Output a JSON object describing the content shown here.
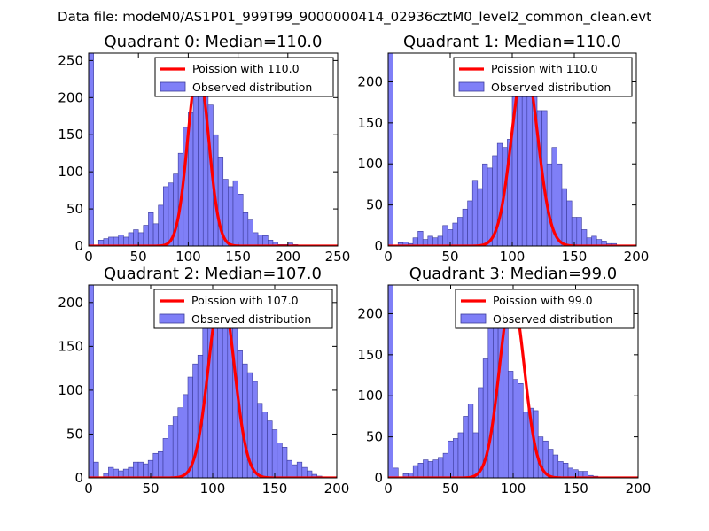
{
  "figure_title": "Data file: modeM0/AS1P01_999T99_9000000414_02936cztM0_level2_common_clean.evt",
  "colors": {
    "bar_fill": "#7f7ff7",
    "bar_edge": "#3b3b9a",
    "poisson": "#ff0000",
    "axes": "#000000"
  },
  "chart_data": [
    {
      "type": "bar",
      "title": "Quadrant 0: Median=110.0",
      "xlim": [
        0,
        250
      ],
      "ylim": [
        0,
        260
      ],
      "xticks": [
        "0",
        "50",
        "100",
        "150",
        "200",
        "250"
      ],
      "yticks": [
        "0",
        "50",
        "100",
        "150",
        "200",
        "250"
      ],
      "bin_width": 5,
      "bin_starts": [
        0,
        10,
        15,
        20,
        25,
        30,
        35,
        40,
        45,
        50,
        55,
        60,
        65,
        70,
        75,
        80,
        85,
        90,
        95,
        100,
        105,
        110,
        115,
        120,
        125,
        130,
        135,
        140,
        145,
        150,
        155,
        160,
        165,
        170,
        175,
        180,
        185,
        190,
        195,
        200,
        205,
        210,
        215,
        220,
        225
      ],
      "counts": [
        260,
        8,
        10,
        12,
        12,
        15,
        12,
        18,
        22,
        18,
        28,
        45,
        30,
        55,
        80,
        85,
        97,
        125,
        160,
        180,
        230,
        248,
        230,
        190,
        150,
        120,
        90,
        80,
        88,
        70,
        45,
        35,
        18,
        15,
        14,
        8,
        5,
        2,
        2,
        4,
        2,
        1,
        0,
        0,
        1
      ],
      "legend": [
        "Poission with 110.0",
        "Observed distribution"
      ],
      "poisson_mean": 110.0,
      "poisson_peak": 240
    },
    {
      "type": "bar",
      "title": "Quadrant 1: Median=110.0",
      "xlim": [
        0,
        200
      ],
      "ylim": [
        0,
        235
      ],
      "xticks": [
        "0",
        "50",
        "100",
        "150",
        "200"
      ],
      "yticks": [
        "0",
        "50",
        "100",
        "150",
        "200"
      ],
      "bin_width": 4,
      "bin_starts": [
        0,
        8,
        12,
        16,
        20,
        24,
        28,
        32,
        36,
        40,
        44,
        48,
        52,
        56,
        60,
        64,
        68,
        72,
        76,
        80,
        84,
        88,
        92,
        96,
        100,
        104,
        108,
        112,
        116,
        120,
        124,
        128,
        132,
        136,
        140,
        144,
        148,
        152,
        156,
        160,
        164,
        168,
        172,
        176,
        180
      ],
      "counts": [
        235,
        4,
        5,
        3,
        10,
        18,
        8,
        12,
        10,
        12,
        25,
        20,
        28,
        35,
        45,
        55,
        80,
        70,
        100,
        95,
        110,
        125,
        120,
        130,
        205,
        208,
        225,
        205,
        185,
        165,
        165,
        100,
        120,
        100,
        70,
        55,
        35,
        35,
        20,
        10,
        12,
        8,
        6,
        3,
        3
      ],
      "legend": [
        "Poission with 110.0",
        "Observed distribution"
      ],
      "poisson_mean": 110.0,
      "poisson_peak": 222
    },
    {
      "type": "bar",
      "title": "Quadrant 2: Median=107.0",
      "xlim": [
        0,
        200
      ],
      "ylim": [
        0,
        220
      ],
      "xticks": [
        "0",
        "50",
        "100",
        "150",
        "200"
      ],
      "yticks": [
        "0",
        "50",
        "100",
        "150",
        "200"
      ],
      "bin_width": 4,
      "bin_starts": [
        0,
        4,
        12,
        16,
        20,
        24,
        28,
        32,
        36,
        40,
        44,
        48,
        52,
        56,
        60,
        64,
        68,
        72,
        76,
        80,
        84,
        88,
        92,
        96,
        100,
        104,
        108,
        112,
        116,
        120,
        124,
        128,
        132,
        136,
        140,
        144,
        148,
        152,
        156,
        160,
        164,
        168,
        172,
        176,
        180,
        184,
        188
      ],
      "counts": [
        220,
        18,
        5,
        12,
        10,
        8,
        10,
        12,
        18,
        18,
        16,
        20,
        28,
        30,
        45,
        60,
        70,
        80,
        95,
        115,
        130,
        140,
        175,
        185,
        190,
        205,
        208,
        190,
        175,
        145,
        130,
        120,
        110,
        85,
        75,
        65,
        55,
        40,
        35,
        20,
        15,
        18,
        12,
        8,
        4,
        2,
        1
      ],
      "legend": [
        "Poission with 107.0",
        "Observed distribution"
      ],
      "poisson_mean": 107.0,
      "poisson_peak": 212
    },
    {
      "type": "bar",
      "title": "Quadrant 3: Median=99.0",
      "xlim": [
        0,
        200
      ],
      "ylim": [
        0,
        235
      ],
      "xticks": [
        "0",
        "50",
        "100",
        "150",
        "200"
      ],
      "yticks": [
        "0",
        "50",
        "100",
        "150",
        "200"
      ],
      "bin_width": 4,
      "bin_starts": [
        0,
        4,
        12,
        16,
        20,
        24,
        28,
        32,
        36,
        40,
        44,
        48,
        52,
        56,
        60,
        64,
        68,
        72,
        76,
        80,
        84,
        88,
        92,
        96,
        100,
        104,
        108,
        112,
        116,
        120,
        124,
        128,
        132,
        136,
        140,
        144,
        148,
        152,
        156,
        160,
        164,
        168,
        172,
        176
      ],
      "counts": [
        235,
        12,
        5,
        6,
        15,
        18,
        22,
        20,
        22,
        25,
        30,
        45,
        48,
        55,
        75,
        90,
        55,
        110,
        145,
        210,
        225,
        220,
        195,
        130,
        120,
        115,
        80,
        85,
        82,
        50,
        45,
        35,
        28,
        20,
        18,
        12,
        10,
        8,
        8,
        3,
        2,
        1,
        1,
        1
      ],
      "legend": [
        "Poission with 99.0",
        "Observed distribution"
      ],
      "poisson_mean": 99.0,
      "poisson_peak": 222
    }
  ]
}
